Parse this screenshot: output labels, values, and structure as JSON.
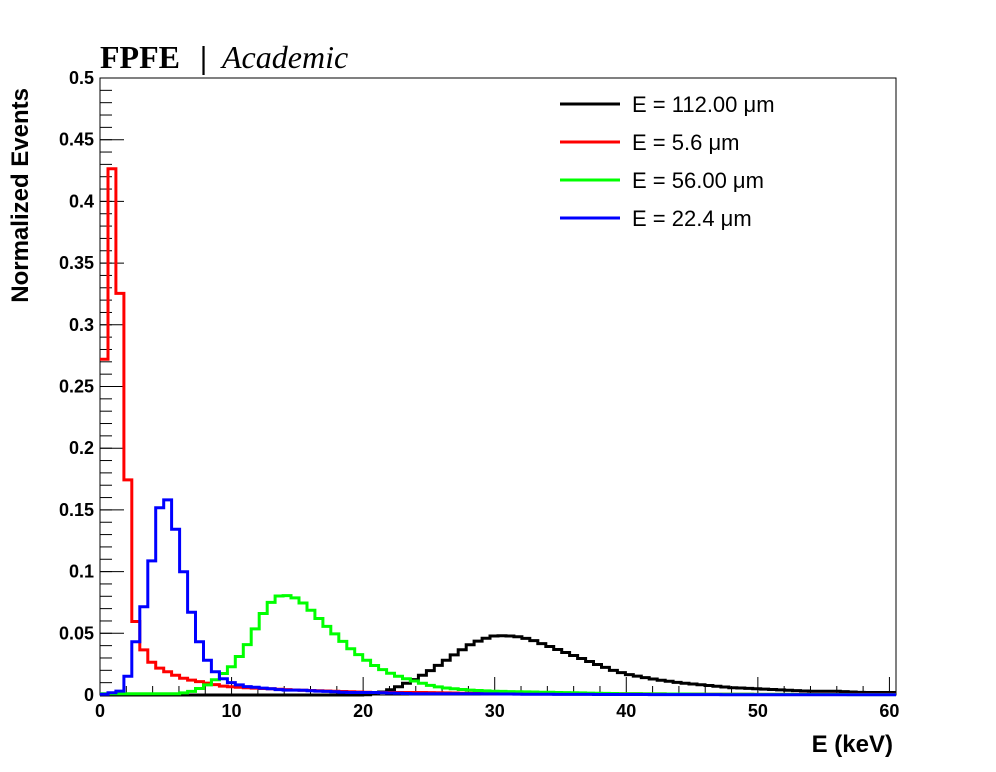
{
  "chart_data": {
    "type": "line",
    "style": "step-histogram",
    "title": "FPFE",
    "title_separator": "|",
    "subtitle": "Academic",
    "xlabel": "E (keV)",
    "ylabel": "Normalized Events",
    "xlim": [
      0,
      60.5
    ],
    "ylim": [
      0,
      0.5
    ],
    "x_ticks": [
      0,
      10,
      20,
      30,
      40,
      50,
      60
    ],
    "x_tick_labels": [
      "0",
      "10",
      "20",
      "30",
      "40",
      "50",
      "60"
    ],
    "y_ticks": [
      0,
      0.05,
      0.1,
      0.15,
      0.2,
      0.25,
      0.3,
      0.35,
      0.4,
      0.45,
      0.5
    ],
    "y_tick_labels": [
      "0",
      "0.05",
      "0.1",
      "0.15",
      "0.2",
      "0.25",
      "0.3",
      "0.35",
      "0.4",
      "0.45",
      "0.5"
    ],
    "bin_width": 0.605,
    "grid": false,
    "legend_position": "top-right",
    "series": [
      {
        "name": "E = 112.00 μm",
        "color": "#000000",
        "x": [
          20,
          21,
          22,
          23,
          24,
          25,
          26,
          27,
          28,
          29,
          30,
          31,
          32,
          33,
          34,
          35,
          36,
          37,
          38,
          39,
          40,
          42,
          44,
          46,
          48,
          50,
          52,
          54,
          56,
          58,
          60,
          60.5
        ],
        "values": [
          0.0,
          0.001,
          0.004,
          0.008,
          0.013,
          0.019,
          0.026,
          0.033,
          0.04,
          0.045,
          0.048,
          0.048,
          0.047,
          0.044,
          0.04,
          0.036,
          0.032,
          0.028,
          0.024,
          0.02,
          0.017,
          0.013,
          0.01,
          0.008,
          0.006,
          0.005,
          0.004,
          0.003,
          0.003,
          0.002,
          0.002,
          0.002
        ]
      },
      {
        "name": "E = 5.6 μm",
        "color": "#ff0000",
        "x": [
          0,
          1,
          2,
          2.5,
          3.5,
          4.5,
          5.5,
          6.5,
          7.5,
          8.5,
          9.5,
          11,
          13,
          15,
          18,
          21,
          25,
          30,
          40,
          50,
          60,
          60.5
        ],
        "values": [
          0.195,
          0.45,
          0.207,
          0.068,
          0.03,
          0.022,
          0.017,
          0.013,
          0.011,
          0.009,
          0.007,
          0.006,
          0.005,
          0.004,
          0.003,
          0.002,
          0.002,
          0.001,
          0.001,
          0.0005,
          0.0005,
          0.0005
        ]
      },
      {
        "name": "E = 56.00 μm",
        "color": "#00ff00",
        "x": [
          6,
          7,
          8,
          9,
          10,
          10.5,
          11,
          11.5,
          12,
          12.5,
          13,
          13.5,
          14,
          14.5,
          15,
          15.5,
          16,
          17,
          18,
          19,
          20,
          21,
          22,
          23,
          24,
          25,
          26,
          28,
          30,
          35,
          40,
          50,
          60,
          60.5
        ],
        "values": [
          0.001,
          0.003,
          0.007,
          0.014,
          0.023,
          0.03,
          0.037,
          0.047,
          0.058,
          0.068,
          0.075,
          0.08,
          0.081,
          0.08,
          0.078,
          0.074,
          0.069,
          0.058,
          0.048,
          0.038,
          0.03,
          0.023,
          0.018,
          0.014,
          0.011,
          0.008,
          0.006,
          0.004,
          0.003,
          0.002,
          0.001,
          0.0005,
          0.0003,
          0.0003
        ]
      },
      {
        "name": "E = 22.4 μm",
        "color": "#0000ff",
        "x": [
          0,
          1.5,
          2.0,
          2.5,
          3.1,
          3.7,
          4.3,
          4.9,
          5.5,
          6.1,
          6.7,
          7.3,
          7.9,
          8.5,
          9.1,
          9.7,
          10.3,
          11,
          12,
          13,
          14,
          15,
          17,
          19,
          21,
          24,
          28,
          35,
          45,
          60,
          60.5
        ],
        "values": [
          0.0,
          0.003,
          0.01,
          0.032,
          0.062,
          0.087,
          0.143,
          0.165,
          0.148,
          0.115,
          0.079,
          0.051,
          0.033,
          0.022,
          0.015,
          0.011,
          0.009,
          0.007,
          0.006,
          0.005,
          0.004,
          0.004,
          0.003,
          0.002,
          0.002,
          0.001,
          0.001,
          0.0005,
          0.0003,
          0.0002,
          0.0002
        ]
      }
    ]
  }
}
